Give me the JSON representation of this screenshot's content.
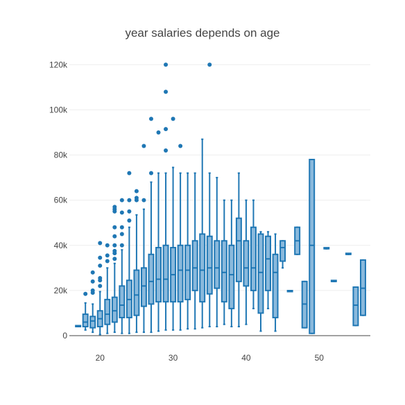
{
  "chart_data": {
    "type": "box",
    "title": "year salaries depends on age",
    "xlabel": "",
    "ylabel": "",
    "xlim": [
      15.8,
      57.0
    ],
    "ylim": [
      0,
      125000
    ],
    "x_ticks": [
      20,
      30,
      40,
      50
    ],
    "y_ticks": [
      0,
      20000,
      40000,
      60000,
      80000,
      100000,
      120000
    ],
    "y_tick_labels": [
      "0",
      "20k",
      "40k",
      "60k",
      "80k",
      "100k",
      "120k"
    ],
    "grid": true,
    "colors": {
      "box_fill": "#8ab9dc",
      "box_line": "#1f77b4",
      "grid": "#eeeeee",
      "axis": "#444444"
    },
    "boxes": [
      {
        "x": 17,
        "min": 4000,
        "q1": 4000,
        "median": 4000,
        "q3": 4000,
        "max": 4000,
        "outliers": []
      },
      {
        "x": 18,
        "min": 2500,
        "q1": 4000,
        "median": 6000,
        "q3": 9500,
        "max": 14500,
        "outliers": [
          18500
        ]
      },
      {
        "x": 19,
        "min": 1500,
        "q1": 3500,
        "median": 6500,
        "q3": 8500,
        "max": 14000,
        "outliers": [
          19000,
          20000,
          24000,
          28000
        ]
      },
      {
        "x": 20,
        "min": 500,
        "q1": 4000,
        "median": 7500,
        "q3": 11000,
        "max": 19500,
        "outliers": [
          22000,
          24500,
          25500,
          31000,
          34500,
          41000
        ]
      },
      {
        "x": 21,
        "min": 1000,
        "q1": 5000,
        "median": 9500,
        "q3": 16000,
        "max": 30000,
        "outliers": [
          33000,
          35500,
          40000
        ]
      },
      {
        "x": 22,
        "min": 1500,
        "q1": 6000,
        "median": 11000,
        "q3": 17000,
        "max": 32000,
        "outliers": [
          34000,
          36500,
          37500,
          40000,
          44000,
          48000,
          55000,
          56000,
          57000
        ]
      },
      {
        "x": 23,
        "min": 1000,
        "q1": 8000,
        "median": 13500,
        "q3": 22000,
        "max": 38000,
        "outliers": [
          40000,
          45000,
          48000,
          54500,
          60000
        ]
      },
      {
        "x": 24,
        "min": 1000,
        "q1": 8000,
        "median": 16000,
        "q3": 24500,
        "max": 48000,
        "outliers": [
          51000,
          55000,
          60000,
          72000
        ]
      },
      {
        "x": 25,
        "min": 1500,
        "q1": 9000,
        "median": 18000,
        "q3": 29000,
        "max": 53500,
        "outliers": [
          60000,
          61000,
          64000
        ]
      },
      {
        "x": 26,
        "min": 1500,
        "q1": 13000,
        "median": 22000,
        "q3": 30000,
        "max": 56000,
        "outliers": [
          60000,
          84000
        ]
      },
      {
        "x": 27,
        "min": 1500,
        "q1": 14000,
        "median": 24000,
        "q3": 36000,
        "max": 68000,
        "outliers": [
          72000,
          96000
        ]
      },
      {
        "x": 28,
        "min": 2000,
        "q1": 15000,
        "median": 25000,
        "q3": 39000,
        "max": 72000,
        "outliers": [
          90000
        ]
      },
      {
        "x": 29,
        "min": 2500,
        "q1": 15000,
        "median": 25000,
        "q3": 40000,
        "max": 72000,
        "outliers": [
          82000,
          91500,
          108000,
          120000
        ]
      },
      {
        "x": 30,
        "min": 2500,
        "q1": 15000,
        "median": 27000,
        "q3": 39000,
        "max": 74500,
        "outliers": [
          96000
        ]
      },
      {
        "x": 31,
        "min": 2500,
        "q1": 15000,
        "median": 29000,
        "q3": 40000,
        "max": 72000,
        "outliers": [
          84000
        ]
      },
      {
        "x": 32,
        "min": 3000,
        "q1": 16000,
        "median": 29000,
        "q3": 40000,
        "max": 72000,
        "outliers": []
      },
      {
        "x": 33,
        "min": 3000,
        "q1": 20000,
        "median": 30000,
        "q3": 42000,
        "max": 72000,
        "outliers": []
      },
      {
        "x": 34,
        "min": 3500,
        "q1": 15000,
        "median": 29000,
        "q3": 45000,
        "max": 87000,
        "outliers": []
      },
      {
        "x": 35,
        "min": 4000,
        "q1": 18500,
        "median": 30000,
        "q3": 44000,
        "max": 72000,
        "outliers": [
          120000
        ]
      },
      {
        "x": 36,
        "min": 4000,
        "q1": 21000,
        "median": 30000,
        "q3": 42000,
        "max": 70000,
        "outliers": []
      },
      {
        "x": 37,
        "min": 5000,
        "q1": 15000,
        "median": 28000,
        "q3": 42000,
        "max": 60000,
        "outliers": []
      },
      {
        "x": 38,
        "min": 4000,
        "q1": 12000,
        "median": 27000,
        "q3": 40000,
        "max": 60000,
        "outliers": []
      },
      {
        "x": 39,
        "min": 4000,
        "q1": 24000,
        "median": 42000,
        "q3": 52000,
        "max": 72000,
        "outliers": []
      },
      {
        "x": 40,
        "min": 5000,
        "q1": 22000,
        "median": 30000,
        "q3": 42000,
        "max": 60000,
        "outliers": []
      },
      {
        "x": 41,
        "min": 12000,
        "q1": 20000,
        "median": 30000,
        "q3": 48000,
        "max": 60000,
        "outliers": []
      },
      {
        "x": 42,
        "min": 2000,
        "q1": 10000,
        "median": 28000,
        "q3": 45000,
        "max": 46000,
        "outliers": []
      },
      {
        "x": 43,
        "min": 12000,
        "q1": 20000,
        "median": 34000,
        "q3": 44000,
        "max": 46000,
        "outliers": []
      },
      {
        "x": 44,
        "min": 2000,
        "q1": 8000,
        "median": 28000,
        "q3": 36000,
        "max": 45000,
        "outliers": []
      },
      {
        "x": 45,
        "min": 30000,
        "q1": 33000,
        "median": 39000,
        "q3": 42000,
        "max": 42000,
        "outliers": []
      },
      {
        "x": 46,
        "min": 19500,
        "q1": 19500,
        "median": 19500,
        "q3": 19500,
        "max": 19500,
        "outliers": []
      },
      {
        "x": 47,
        "min": 36000,
        "q1": 36000,
        "median": 42000,
        "q3": 48000,
        "max": 48000,
        "outliers": []
      },
      {
        "x": 48,
        "min": 3500,
        "q1": 3500,
        "median": 14000,
        "q3": 24000,
        "max": 24000,
        "outliers": []
      },
      {
        "x": 49,
        "min": 1000,
        "q1": 1000,
        "median": 40000,
        "q3": 78000,
        "max": 78000,
        "outliers": []
      },
      {
        "x": 51,
        "min": 38500,
        "q1": 38500,
        "median": 38500,
        "q3": 38500,
        "max": 38500,
        "outliers": []
      },
      {
        "x": 52,
        "min": 24000,
        "q1": 24000,
        "median": 24000,
        "q3": 24000,
        "max": 24000,
        "outliers": []
      },
      {
        "x": 54,
        "min": 36000,
        "q1": 36000,
        "median": 36000,
        "q3": 36000,
        "max": 36000,
        "outliers": []
      },
      {
        "x": 55,
        "min": 4500,
        "q1": 4500,
        "median": 13500,
        "q3": 21500,
        "max": 21500,
        "outliers": []
      },
      {
        "x": 56,
        "min": 9000,
        "q1": 9000,
        "median": 21000,
        "q3": 33500,
        "max": 33500,
        "outliers": []
      }
    ]
  }
}
